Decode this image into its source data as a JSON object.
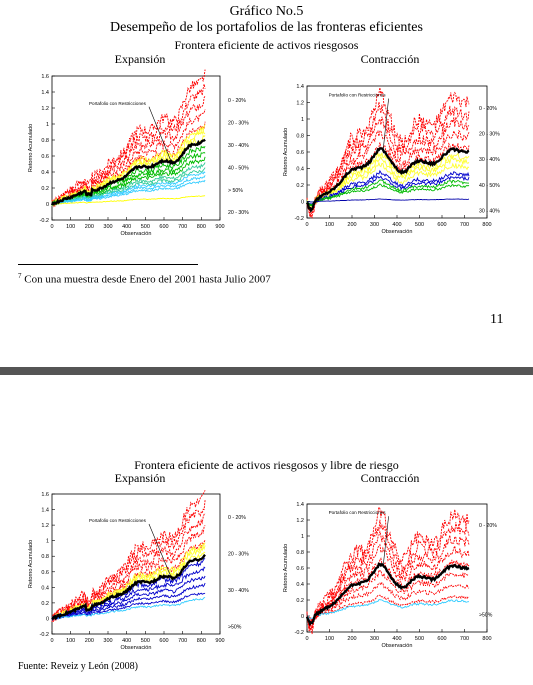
{
  "page": {
    "title": "Gráfico No.5",
    "subtitle": "Desempeño de los portafolios de las fronteras eficientes",
    "top_caption": "Frontera eficiente de activos riesgosos",
    "bottom_caption": "Frontera eficiente de activos riesgosos y libre de riesgo",
    "footnote_mark": "7",
    "footnote_text": "Con una muestra desde Enero del 2001 hasta Julio 2007",
    "page_number": "11",
    "source": "Fuente: Reveiz y León (2008)"
  },
  "chart_data": [
    {
      "id": "top_expansion",
      "type": "line",
      "title": "Expansión",
      "xlabel": "Observación",
      "ylabel": "Retorno Acumulado",
      "xlim": [
        0,
        900
      ],
      "ylim": [
        -0.2,
        1.6
      ],
      "xticks": [
        0,
        100,
        200,
        300,
        400,
        500,
        600,
        700,
        800,
        900
      ],
      "yticks": [
        -0.2,
        0,
        0.2,
        0.4,
        0.6,
        0.8,
        1,
        1.2,
        1.4,
        1.6
      ],
      "ytick_labels": [
        "-0.2",
        "0",
        "0.2",
        "0.4",
        "0.6",
        "0.8",
        "1",
        "1.2",
        "1.4",
        "1.6"
      ],
      "n_obs": 820,
      "annotation": "Portafolio con Restricciones",
      "legend_labels": [
        "0 - 20%",
        "20 - 30%",
        "30 - 40%",
        "40 - 50%",
        "> 50%",
        "20 - 30%"
      ],
      "bands": [
        {
          "name": "0 - 20%",
          "color": "#ff0000",
          "final_values": [
            0.95,
            1.1,
            1.25,
            1.4,
            1.55
          ]
        },
        {
          "name": "20 - 30%",
          "color": "#ffff33",
          "final_values": [
            0.82,
            0.88,
            0.93
          ]
        },
        {
          "name": "30 - 40%",
          "color": "#00bb00",
          "final_values": [
            0.55,
            0.62,
            0.7
          ]
        },
        {
          "name": "40 - 50%",
          "color": "#33cc99",
          "final_values": [
            0.42,
            0.48
          ]
        },
        {
          "name": "> 50%",
          "color": "#33ccff",
          "final_values": [
            0.28,
            0.33,
            0.38
          ]
        },
        {
          "name": "20 - 30%",
          "color": "#ffff00",
          "final_values": [
            0.1
          ]
        }
      ],
      "restricted_final": 0.78
    },
    {
      "id": "top_contraccion",
      "type": "line",
      "title": "Contracción",
      "xlabel": "Observación",
      "ylabel": "Retorno Acumulado",
      "xlim": [
        0,
        800
      ],
      "ylim": [
        -0.2,
        1.4
      ],
      "xticks": [
        0,
        100,
        200,
        300,
        400,
        500,
        600,
        700,
        800
      ],
      "yticks": [
        -0.2,
        0,
        0.2,
        0.4,
        0.6,
        0.8,
        1,
        1.2,
        1.4
      ],
      "ytick_labels": [
        "-0.2",
        "0",
        "0.2",
        "0.4",
        "0.6",
        "0.8",
        "1",
        "1.2",
        "1.4"
      ],
      "n_obs": 720,
      "annotation": "Portafolio con Restricciones",
      "legend_labels": [
        "0 - 20%",
        "20 - 30%",
        "30 - 40%",
        "40 - 50%",
        "30 - 40%"
      ],
      "bands": [
        {
          "name": "0 - 20%",
          "color": "#ff0000",
          "final_values": [
            0.7,
            0.85,
            1.0,
            1.15,
            1.3
          ]
        },
        {
          "name": "20 - 30%",
          "color": "#ffff33",
          "final_values": [
            0.45,
            0.52,
            0.58
          ]
        },
        {
          "name": "30 - 40%",
          "color": "#0000cc",
          "final_values": [
            0.3,
            0.35
          ]
        },
        {
          "name": "40 - 50%",
          "color": "#00bb00",
          "final_values": [
            0.2,
            0.25
          ]
        },
        {
          "name": "30 - 40%",
          "color": "#0000aa",
          "final_values": [
            0.03
          ]
        }
      ],
      "restricted_final": 0.65
    },
    {
      "id": "bottom_expansion",
      "type": "line",
      "title": "Expansión",
      "xlabel": "Observación",
      "ylabel": "Retorno Acumulado",
      "xlim": [
        0,
        900
      ],
      "ylim": [
        -0.2,
        1.6
      ],
      "xticks": [
        0,
        100,
        200,
        300,
        400,
        500,
        600,
        700,
        800,
        900
      ],
      "yticks": [
        -0.2,
        0,
        0.2,
        0.4,
        0.6,
        0.8,
        1,
        1.2,
        1.4,
        1.6
      ],
      "ytick_labels": [
        "-0.2",
        "0",
        "0.2",
        "0.4",
        "0.6",
        "0.8",
        "1",
        "1.2",
        "1.4",
        "1.6"
      ],
      "n_obs": 820,
      "annotation": "Portafolio con Restricciones",
      "legend_labels": [
        "0 - 20%",
        "20 - 30%",
        "30 - 40%",
        ">50%"
      ],
      "bands": [
        {
          "name": "0 - 20%",
          "color": "#ff0000",
          "final_values": [
            0.95,
            1.1,
            1.25,
            1.4,
            1.55
          ]
        },
        {
          "name": "20 - 30%",
          "color": "#ffff33",
          "final_values": [
            0.82,
            0.88,
            0.93
          ]
        },
        {
          "name": "30 - 40%",
          "color": "#0000cc",
          "final_values": [
            0.32,
            0.42,
            0.52,
            0.62,
            0.72
          ]
        },
        {
          "name": ">50%",
          "color": "#33ccff",
          "final_values": [
            0.25
          ]
        }
      ],
      "restricted_final": 0.78
    },
    {
      "id": "bottom_contraccion",
      "type": "line",
      "title": "Contracción",
      "xlabel": "Observación",
      "ylabel": "Retorno Acumulado",
      "xlim": [
        0,
        800
      ],
      "ylim": [
        -0.2,
        1.4
      ],
      "xticks": [
        0,
        100,
        200,
        300,
        400,
        500,
        600,
        700,
        800
      ],
      "yticks": [
        -0.2,
        0,
        0.2,
        0.4,
        0.6,
        0.8,
        1,
        1.2,
        1.4
      ],
      "ytick_labels": [
        "-0.2",
        "0",
        "0.2",
        "0.4",
        "0.6",
        "0.8",
        "1",
        "1.2",
        "1.4"
      ],
      "n_obs": 720,
      "annotation": "Portafolio con Restricciones",
      "legend_labels": [
        "0 - 20%",
        ">50%"
      ],
      "bands": [
        {
          "name": "0 - 20%",
          "color": "#ff0000",
          "final_values": [
            0.25,
            0.4,
            0.55,
            0.7,
            0.85,
            1.0,
            1.15,
            1.3
          ]
        },
        {
          "name": ">50%",
          "color": "#33ccff",
          "final_values": [
            0.2
          ]
        }
      ],
      "restricted_final": 0.65
    }
  ]
}
